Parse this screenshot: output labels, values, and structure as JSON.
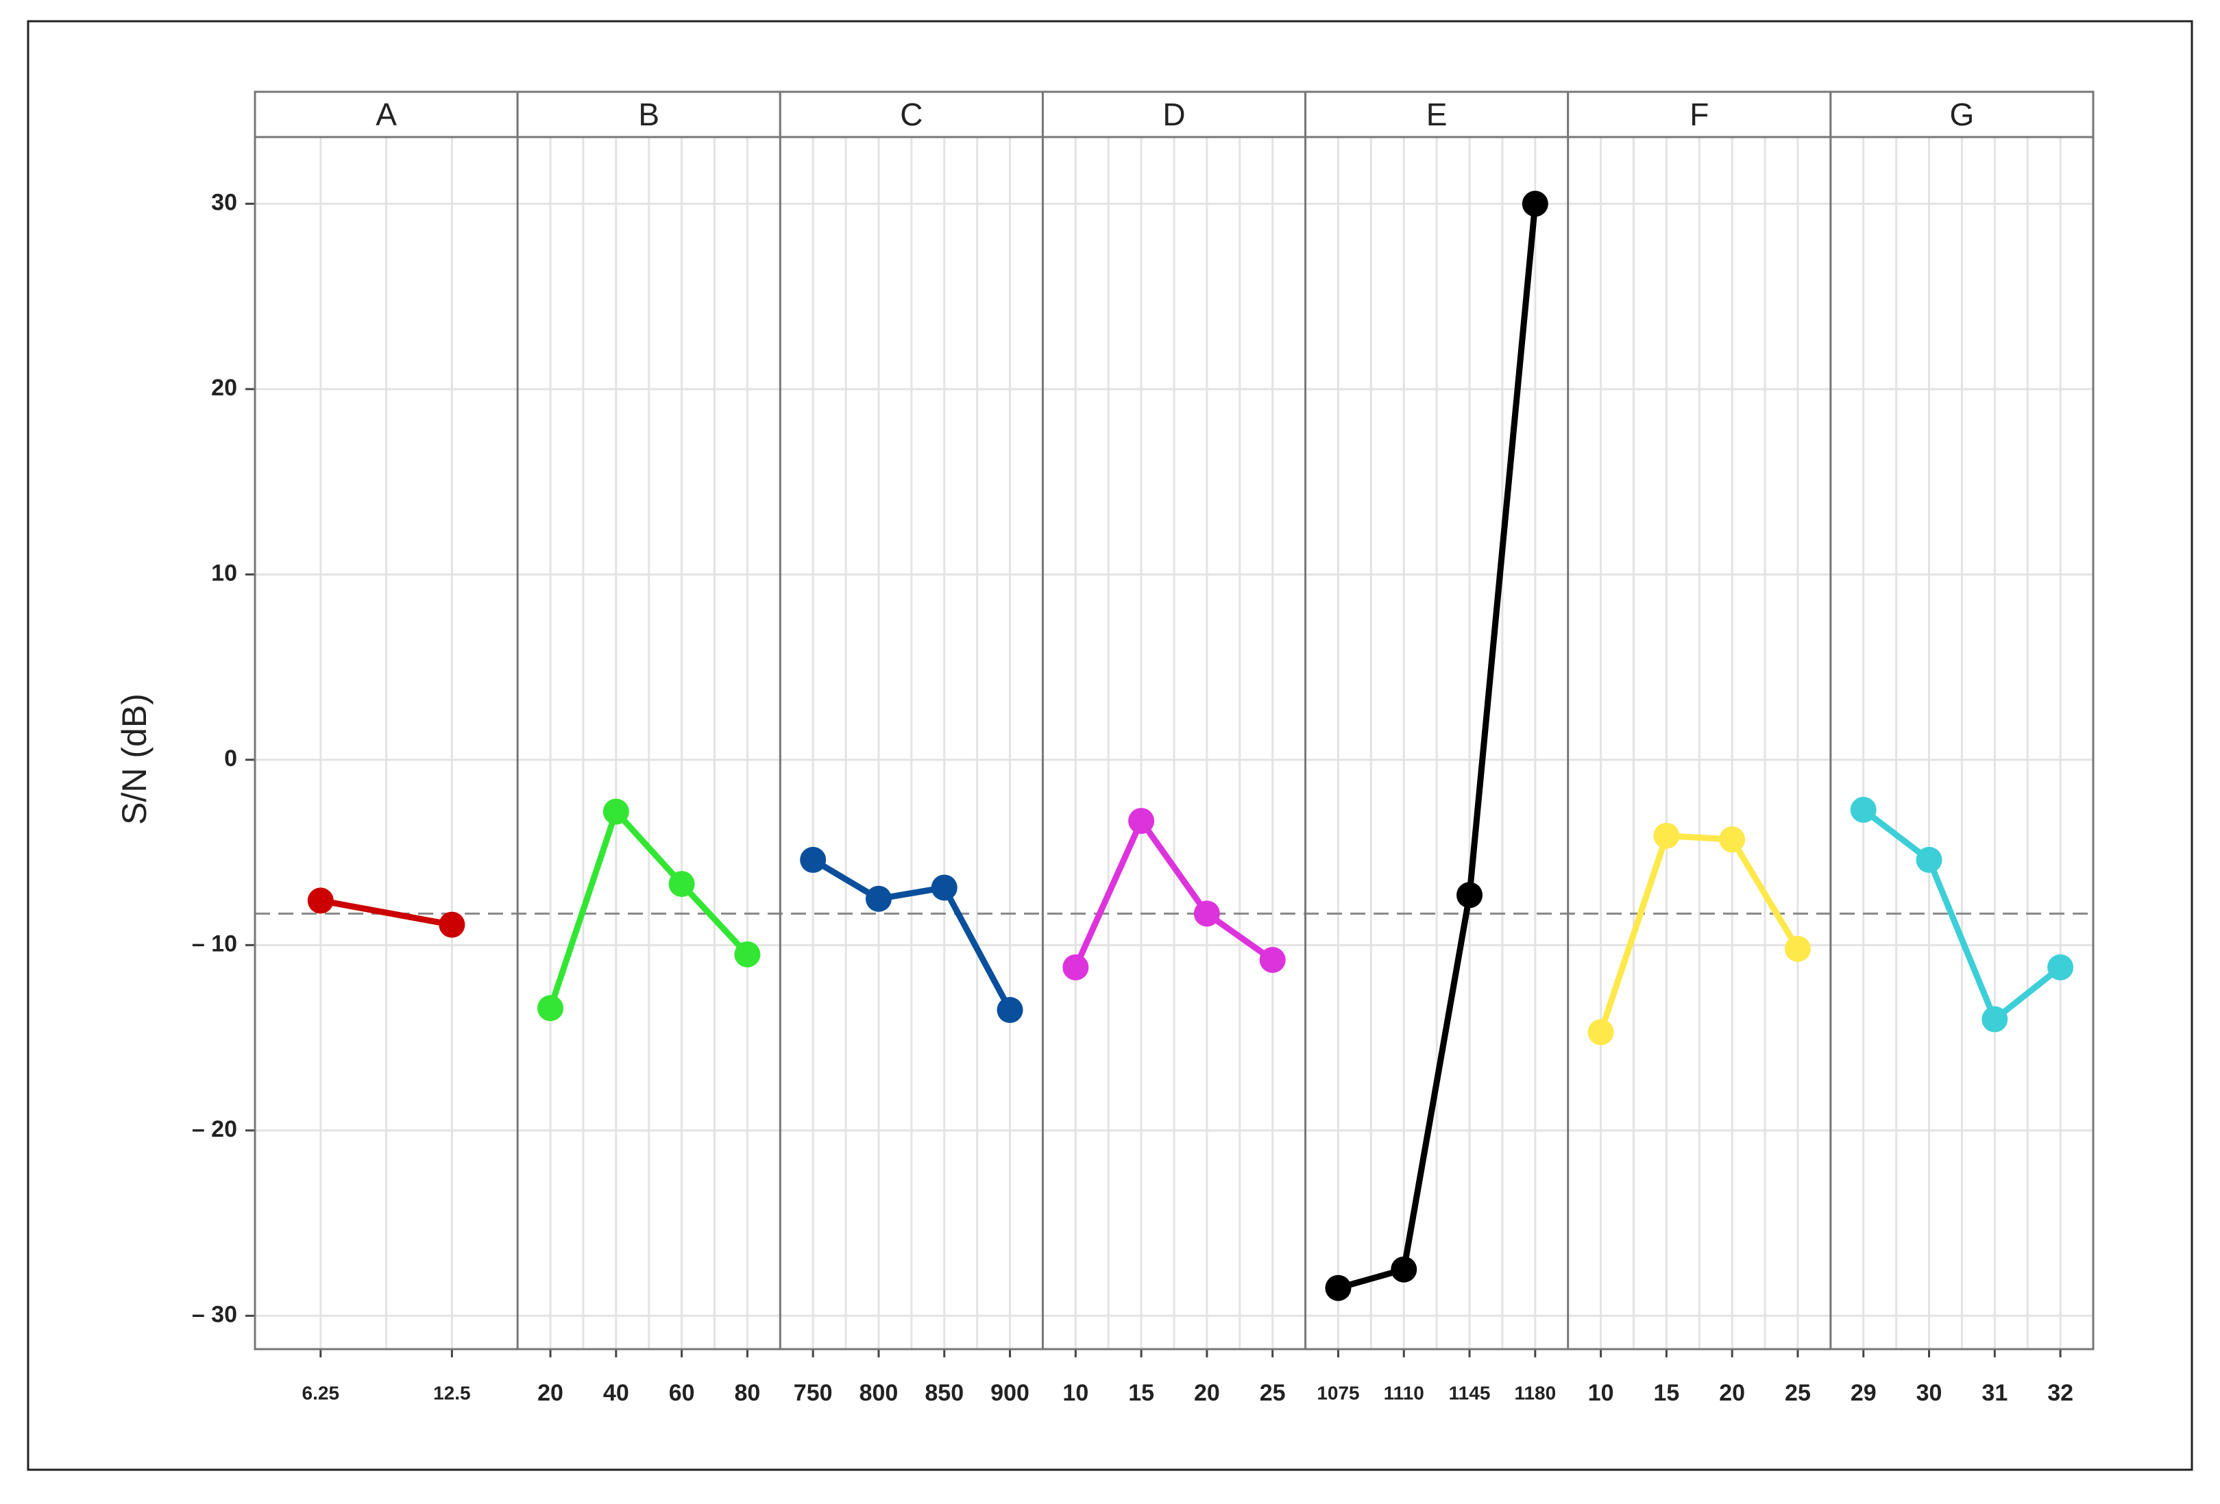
{
  "chart_data": {
    "type": "line",
    "ylabel": "S/N (dB)",
    "ylim": [
      -31.8,
      33.6
    ],
    "yticks": [
      {
        "value": -30,
        "label": "– 30"
      },
      {
        "value": -20,
        "label": "– 20"
      },
      {
        "value": -10,
        "label": "– 10"
      },
      0,
      10,
      20,
      30
    ],
    "grid": true,
    "reference_line": -8.3,
    "series": [
      {
        "name": "A",
        "color": "#cc0000",
        "categories": [
          "6.25",
          "12.5"
        ],
        "values": [
          -7.6,
          -8.9
        ]
      },
      {
        "name": "B",
        "color": "#33e633",
        "categories": [
          "20",
          "40",
          "60",
          "80"
        ],
        "values": [
          -13.4,
          -2.8,
          -6.7,
          -10.5
        ]
      },
      {
        "name": "C",
        "color": "#0a4f9c",
        "categories": [
          "750",
          "800",
          "850",
          "900"
        ],
        "values": [
          -5.4,
          -7.5,
          -6.9,
          -13.5
        ]
      },
      {
        "name": "D",
        "color": "#dd33dd",
        "categories": [
          "10",
          "15",
          "20",
          "25"
        ],
        "values": [
          -11.2,
          -3.3,
          -8.3,
          -10.8
        ]
      },
      {
        "name": "E",
        "color": "#000000",
        "categories": [
          "1075",
          "1110",
          "1145",
          "1180"
        ],
        "values": [
          -28.5,
          -27.5,
          -7.3,
          30.0
        ]
      },
      {
        "name": "F",
        "color": "#ffe84a",
        "categories": [
          "10",
          "15",
          "20",
          "25"
        ],
        "values": [
          -14.7,
          -4.1,
          -4.3,
          -10.2
        ]
      },
      {
        "name": "G",
        "color": "#3dcfd8",
        "categories": [
          "29",
          "30",
          "31",
          "32"
        ],
        "values": [
          -2.7,
          -5.4,
          -14.0,
          -11.2
        ]
      }
    ]
  }
}
